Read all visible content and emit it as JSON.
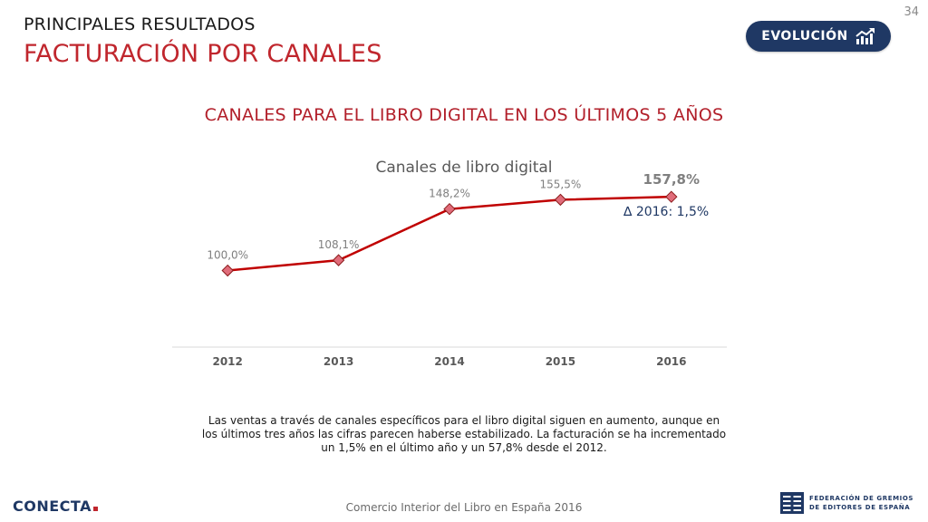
{
  "header": {
    "subtitle": "PRINCIPALES RESULTADOS",
    "title": "FACTURACIÓN POR CANALES",
    "page_number": "34"
  },
  "evolution_button": {
    "label": "EVOLUCIÓN",
    "icon": "trend-up-icon"
  },
  "section_title": "CANALES PARA EL LIBRO DIGITAL EN LOS ÚLTIMOS 5 AÑOS",
  "chart_data": {
    "type": "line",
    "title": "Canales de libro digital",
    "categories": [
      "2012",
      "2013",
      "2014",
      "2015",
      "2016"
    ],
    "values": [
      100.0,
      108.1,
      148.2,
      155.5,
      157.8
    ],
    "data_labels": [
      "100,0%",
      "108,1%",
      "148,2%",
      "155,5%",
      "157,8%"
    ],
    "xlabel": "",
    "ylabel": "",
    "ylim": [
      40,
      170
    ],
    "grid": false,
    "line_color": "#c00000",
    "marker_color": "#e06c7a",
    "annotation": "∆ 2016: 1,5%"
  },
  "body_text": "Las ventas a través de canales específicos para el libro digital siguen en aumento, aunque en los últimos tres años las cifras parecen haberse estabilizado. La facturación se ha incrementado un 1,5% en el último año y un 57,8% desde el 2012.",
  "footer": {
    "center_text": "Comercio Interior del Libro en España 2016",
    "left_logo": "CONECTA",
    "right_logo_line1": "FEDERACIÓN DE GREMIOS",
    "right_logo_line2": "DE EDITORES DE ESPAÑA"
  },
  "colors": {
    "brand_red": "#c0262d",
    "brand_navy": "#1f3864"
  }
}
